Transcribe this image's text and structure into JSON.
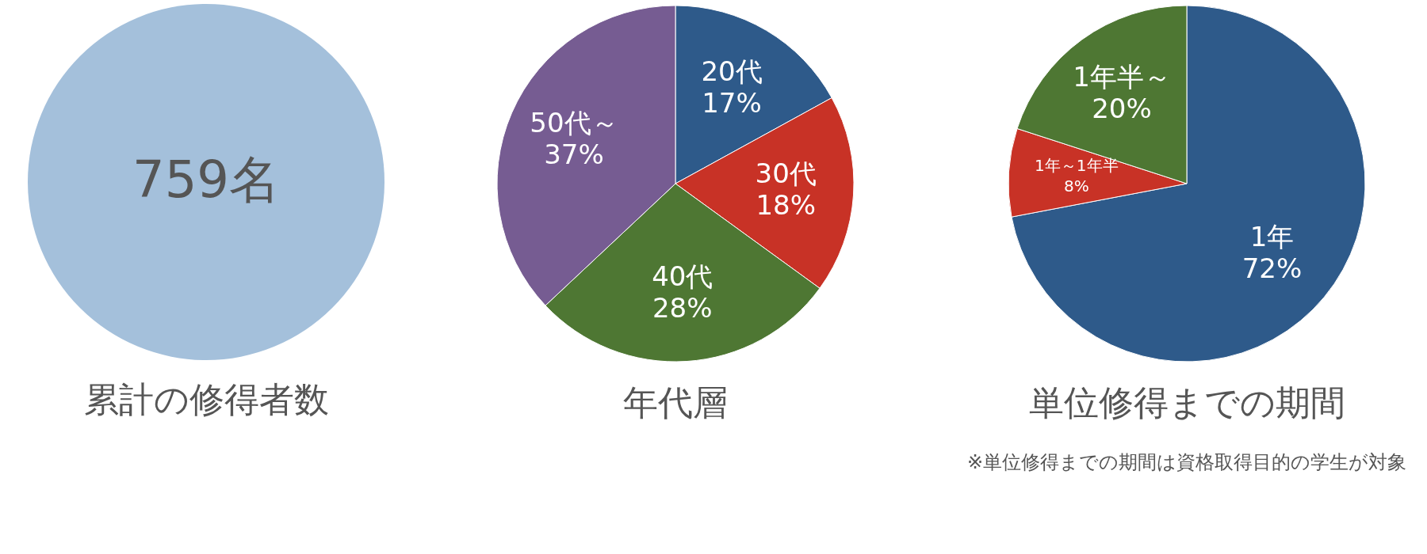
{
  "chart_data": [
    {
      "type": "pie",
      "title": "累計の修得者数",
      "categories": [
        null
      ],
      "values": [
        759
      ],
      "value_labels": [
        "759名"
      ],
      "colors": [
        "#a4c0db"
      ]
    },
    {
      "type": "pie",
      "title": "年代層",
      "categories": [
        "20代",
        "30代",
        "40代",
        "50代～"
      ],
      "values": [
        17,
        18,
        28,
        37
      ],
      "value_labels": [
        "17%",
        "18%",
        "28%",
        "37%"
      ],
      "colors": [
        "#2e5a8a",
        "#c83226",
        "#4e7733",
        "#765c92"
      ]
    },
    {
      "type": "pie",
      "title": "単位修得までの期間",
      "categories": [
        "1年",
        "1年～1年半",
        "1年半～"
      ],
      "values": [
        72,
        8,
        20
      ],
      "value_labels": [
        "72%",
        "8%",
        "20%"
      ],
      "colors": [
        "#2e5a8a",
        "#c83226",
        "#4e7733"
      ],
      "annotations": [
        "※単位修得までの期間は資格取得目的の学生が対象"
      ]
    }
  ]
}
